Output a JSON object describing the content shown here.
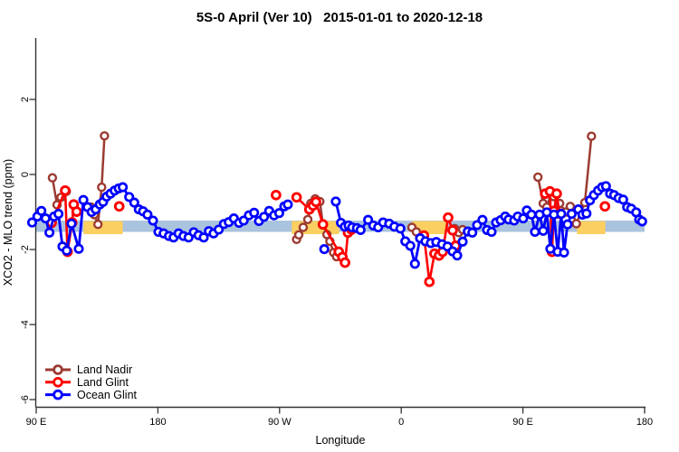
{
  "title": "5S-0 April (Ver 10)   2015-01-01 to 2020-12-18",
  "chart_data": {
    "type": "line",
    "title": "5S-0 April (Ver 10)   2015-01-01 to 2020-12-18",
    "xlabel": "Longitude",
    "ylabel": "XCO2 - MLO trend (ppm)",
    "grid": false,
    "legend_position": "bottom-left",
    "x_axis": {
      "note": "longitude wraps: axis spans 450 deg starting at 90E",
      "tick_labels": [
        "90 E",
        "180",
        "90 W",
        "0",
        "90 E",
        "180"
      ],
      "tick_offsets_deg": [
        0,
        90,
        180,
        270,
        360,
        450
      ],
      "range_deg": [
        0,
        450
      ]
    },
    "y_axis": {
      "tick_labels": [
        "2",
        "0",
        "-2",
        "-4",
        "-6"
      ],
      "tick_values": [
        2,
        0,
        -2,
        -4,
        -6
      ],
      "range": [
        -6.2,
        3.6
      ]
    },
    "reference_band": {
      "color": "#AAC3DE",
      "value_top": -1.23,
      "value_bottom": -1.53,
      "x_range_deg": [
        0,
        450
      ],
      "highlight_color": "#FBCF60",
      "highlight_segments_deg": [
        [
          35,
          64
        ],
        [
          189,
          224
        ],
        [
          278,
          303
        ],
        [
          400,
          421
        ]
      ]
    },
    "legend": [
      {
        "label": "Land Nadir",
        "color": "#9C3B32"
      },
      {
        "label": "Land Glint",
        "color": "#FF0000"
      },
      {
        "label": "Ocean Glint",
        "color": "#0000FF"
      }
    ],
    "series": [
      {
        "name": "Land Nadir",
        "color": "#9C3B32",
        "segments": [
          [
            [
              12,
              -0.09
            ],
            [
              15.4,
              -0.81
            ],
            [
              18.3,
              -0.61
            ],
            [
              22.3,
              -0.45
            ]
          ],
          [
            [
              40.6,
              -0.87
            ],
            [
              42.9,
              -1.07
            ],
            [
              45.7,
              -1.33
            ],
            [
              48.4,
              -0.34
            ],
            [
              50.5,
              1.03
            ]
          ],
          [
            [
              192.6,
              -1.73
            ],
            [
              194.2,
              -1.61
            ],
            [
              197.5,
              -1.41
            ],
            [
              200.9,
              -1.2
            ],
            [
              203.1,
              -0.77
            ],
            [
              206.4,
              -0.65
            ],
            [
              209.8,
              -0.72
            ],
            [
              212.1,
              -1.33
            ],
            [
              215,
              -1.6
            ],
            [
              217.2,
              -1.78
            ],
            [
              219.9,
              -2.08
            ],
            [
              222.1,
              -2.19
            ]
          ],
          [
            [
              277.9,
              -1.41
            ],
            [
              281.2,
              -1.53
            ]
          ],
          [
            [
              309.5,
              -1.44
            ],
            [
              312.5,
              -1.55
            ],
            [
              315.4,
              -1.47
            ]
          ],
          [
            [
              371.1,
              -0.07
            ],
            [
              375,
              -0.77
            ],
            [
              377.7,
              -0.87
            ],
            [
              381,
              -0.49
            ],
            [
              382.8,
              -0.59
            ],
            [
              387.2,
              -0.77
            ],
            [
              391.7,
              -1.0
            ],
            [
              395,
              -0.85
            ],
            [
              399.5,
              -1.31
            ],
            [
              405.8,
              -0.75
            ],
            [
              410.7,
              1.02
            ]
          ]
        ]
      },
      {
        "name": "Land Glint",
        "color": "#FF0000",
        "segments": [
          [
            [
              11.4,
              -1.29
            ],
            [
              21.4,
              -0.43
            ],
            [
              23.2,
              -2.06
            ],
            [
              26.6,
              -1.28
            ],
            [
              27.7,
              -0.8
            ],
            [
              29.9,
              -0.99
            ]
          ],
          [
            [
              61.4,
              -0.85
            ]
          ],
          [
            [
              177.4,
              -0.55
            ]
          ],
          [
            [
              192.6,
              -0.61
            ],
            [
              202,
              -0.93
            ],
            [
              204.7,
              -0.83
            ],
            [
              206.9,
              -0.73
            ],
            [
              212.1,
              -1.33
            ],
            [
              223.8,
              -2.06
            ],
            [
              226.5,
              -2.2
            ],
            [
              228.4,
              -2.35
            ],
            [
              230.6,
              -1.55
            ],
            [
              233.2,
              -1.47
            ]
          ],
          [
            [
              286.8,
              -1.63
            ],
            [
              290.8,
              -2.86
            ],
            [
              294.6,
              -2.11
            ],
            [
              298,
              -2.16
            ],
            [
              300.6,
              -2.06
            ],
            [
              304.7,
              -1.15
            ],
            [
              308,
              -1.49
            ],
            [
              310.2,
              -1.9
            ]
          ],
          [
            [
              376.5,
              -0.51
            ],
            [
              380,
              -0.45
            ],
            [
              381.5,
              -2.06
            ],
            [
              383,
              -0.97
            ],
            [
              385,
              -0.51
            ],
            [
              387,
              -1.04
            ]
          ],
          [
            [
              420.7,
              -0.85
            ]
          ]
        ]
      },
      {
        "name": "Ocean Glint",
        "color": "#0000FF",
        "segments": [
          [
            [
              -3,
              -1.28
            ],
            [
              0.9,
              -1.12
            ],
            [
              3.8,
              -0.97
            ],
            [
              6.9,
              -1.17
            ],
            [
              9.8,
              -1.55
            ],
            [
              13.2,
              -1.12
            ],
            [
              16.5,
              -1.05
            ],
            [
              19.4,
              -1.92
            ],
            [
              22.6,
              -2.03
            ],
            [
              26.1,
              -1.31
            ],
            [
              31.5,
              -1.98
            ],
            [
              34.9,
              -0.68
            ],
            [
              38,
              -0.87
            ],
            [
              41,
              -1.0
            ],
            [
              44,
              -0.93
            ],
            [
              47,
              -0.8
            ],
            [
              49.5,
              -0.73
            ],
            [
              52,
              -0.59
            ],
            [
              55,
              -0.51
            ],
            [
              58,
              -0.43
            ],
            [
              61,
              -0.37
            ],
            [
              64,
              -0.34
            ],
            [
              68.8,
              -0.6
            ],
            [
              72.5,
              -0.75
            ],
            [
              75.9,
              -0.93
            ],
            [
              79,
              -0.98
            ],
            [
              82.3,
              -1.07
            ],
            [
              86.4,
              -1.23
            ],
            [
              90.4,
              -1.53
            ],
            [
              94.2,
              -1.57
            ],
            [
              98.2,
              -1.64
            ],
            [
              101.6,
              -1.68
            ],
            [
              105.3,
              -1.57
            ],
            [
              108.9,
              -1.64
            ],
            [
              112.7,
              -1.68
            ],
            [
              116.5,
              -1.54
            ],
            [
              120.1,
              -1.62
            ],
            [
              123.9,
              -1.68
            ],
            [
              127.7,
              -1.51
            ],
            [
              131.2,
              -1.57
            ],
            [
              135,
              -1.47
            ],
            [
              138.8,
              -1.32
            ],
            [
              142.4,
              -1.27
            ],
            [
              146.2,
              -1.17
            ],
            [
              150,
              -1.29
            ],
            [
              153.5,
              -1.23
            ],
            [
              157.3,
              -1.09
            ],
            [
              161.2,
              -1.02
            ],
            [
              164.7,
              -1.24
            ],
            [
              168.5,
              -1.13
            ],
            [
              172.3,
              -0.97
            ],
            [
              175.9,
              -1.09
            ],
            [
              179.7,
              -1.03
            ],
            [
              183.5,
              -0.85
            ],
            [
              186.1,
              -0.8
            ]
          ],
          [
            [
              213.1,
              -1.99
            ]
          ],
          [
            [
              221.6,
              -0.72
            ],
            [
              225.4,
              -1.29
            ],
            [
              228.3,
              -1.39
            ],
            [
              231,
              -1.36
            ],
            [
              233.7,
              -1.41
            ],
            [
              237.2,
              -1.43
            ],
            [
              239.9,
              -1.48
            ],
            [
              245.5,
              -1.21
            ],
            [
              249.3,
              -1.36
            ],
            [
              252.9,
              -1.41
            ],
            [
              256.6,
              -1.28
            ],
            [
              261.1,
              -1.31
            ],
            [
              264.9,
              -1.39
            ],
            [
              269.4,
              -1.44
            ],
            [
              273,
              -1.78
            ],
            [
              276.7,
              -1.9
            ],
            [
              280.1,
              -2.38
            ],
            [
              283.9,
              -1.7
            ],
            [
              287.9,
              -1.78
            ],
            [
              291.9,
              -1.83
            ],
            [
              295.9,
              -1.8
            ],
            [
              300.2,
              -1.86
            ],
            [
              304.2,
              -1.92
            ],
            [
              308,
              -2.05
            ],
            [
              311.4,
              -2.16
            ],
            [
              315.4,
              -1.79
            ],
            [
              319.2,
              -1.52
            ],
            [
              322.6,
              -1.55
            ],
            [
              326.1,
              -1.35
            ],
            [
              330.1,
              -1.21
            ],
            [
              333.5,
              -1.48
            ],
            [
              336.8,
              -1.53
            ],
            [
              340.2,
              -1.28
            ],
            [
              343.5,
              -1.22
            ],
            [
              346.9,
              -1.12
            ],
            [
              349.5,
              -1.2
            ],
            [
              353.5,
              -1.23
            ],
            [
              356.2,
              -1.12
            ],
            [
              360.2,
              -1.17
            ],
            [
              362.9,
              -0.96
            ],
            [
              366.3,
              -1.07
            ],
            [
              368.9,
              -1.53
            ],
            [
              372.3,
              -1.07
            ],
            [
              375,
              -1.5
            ],
            [
              377.7,
              -1.01
            ],
            [
              380.3,
              -1.98
            ],
            [
              383,
              -1.07
            ],
            [
              385.7,
              -2.06
            ],
            [
              388.3,
              -1.05
            ],
            [
              390.4,
              -2.08
            ],
            [
              393,
              -1.33
            ],
            [
              396,
              -1.05
            ],
            [
              401,
              -0.93
            ],
            [
              404,
              -1.07
            ],
            [
              407,
              -1.04
            ],
            [
              409.6,
              -0.69
            ],
            [
              412.5,
              -0.55
            ],
            [
              415.6,
              -0.43
            ],
            [
              418.5,
              -0.34
            ],
            [
              421.4,
              -0.31
            ],
            [
              424.5,
              -0.51
            ],
            [
              427.4,
              -0.55
            ],
            [
              430.8,
              -0.63
            ],
            [
              434.1,
              -0.67
            ],
            [
              437.1,
              -0.87
            ],
            [
              440.1,
              -0.91
            ],
            [
              443.8,
              -1.01
            ],
            [
              446,
              -1.2
            ],
            [
              448.2,
              -1.25
            ]
          ]
        ]
      }
    ]
  }
}
